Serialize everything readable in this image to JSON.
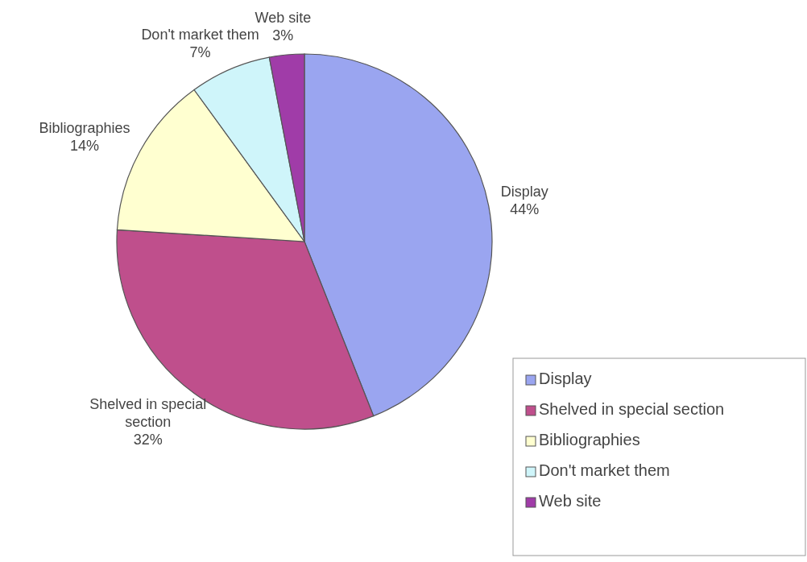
{
  "chart_data": {
    "type": "pie",
    "categories": [
      "Display",
      "Shelved in special section",
      "Bibliographies",
      "Don't market them",
      "Web site"
    ],
    "values": [
      44,
      32,
      14,
      7,
      3
    ],
    "colors": [
      "#9aa5f0",
      "#bf4f8c",
      "#ffffd0",
      "#cff5fa",
      "#a03ca8"
    ],
    "value_labels": [
      "44%",
      "32%",
      "14%",
      "7%",
      "3%"
    ],
    "legend": "bottom right"
  }
}
